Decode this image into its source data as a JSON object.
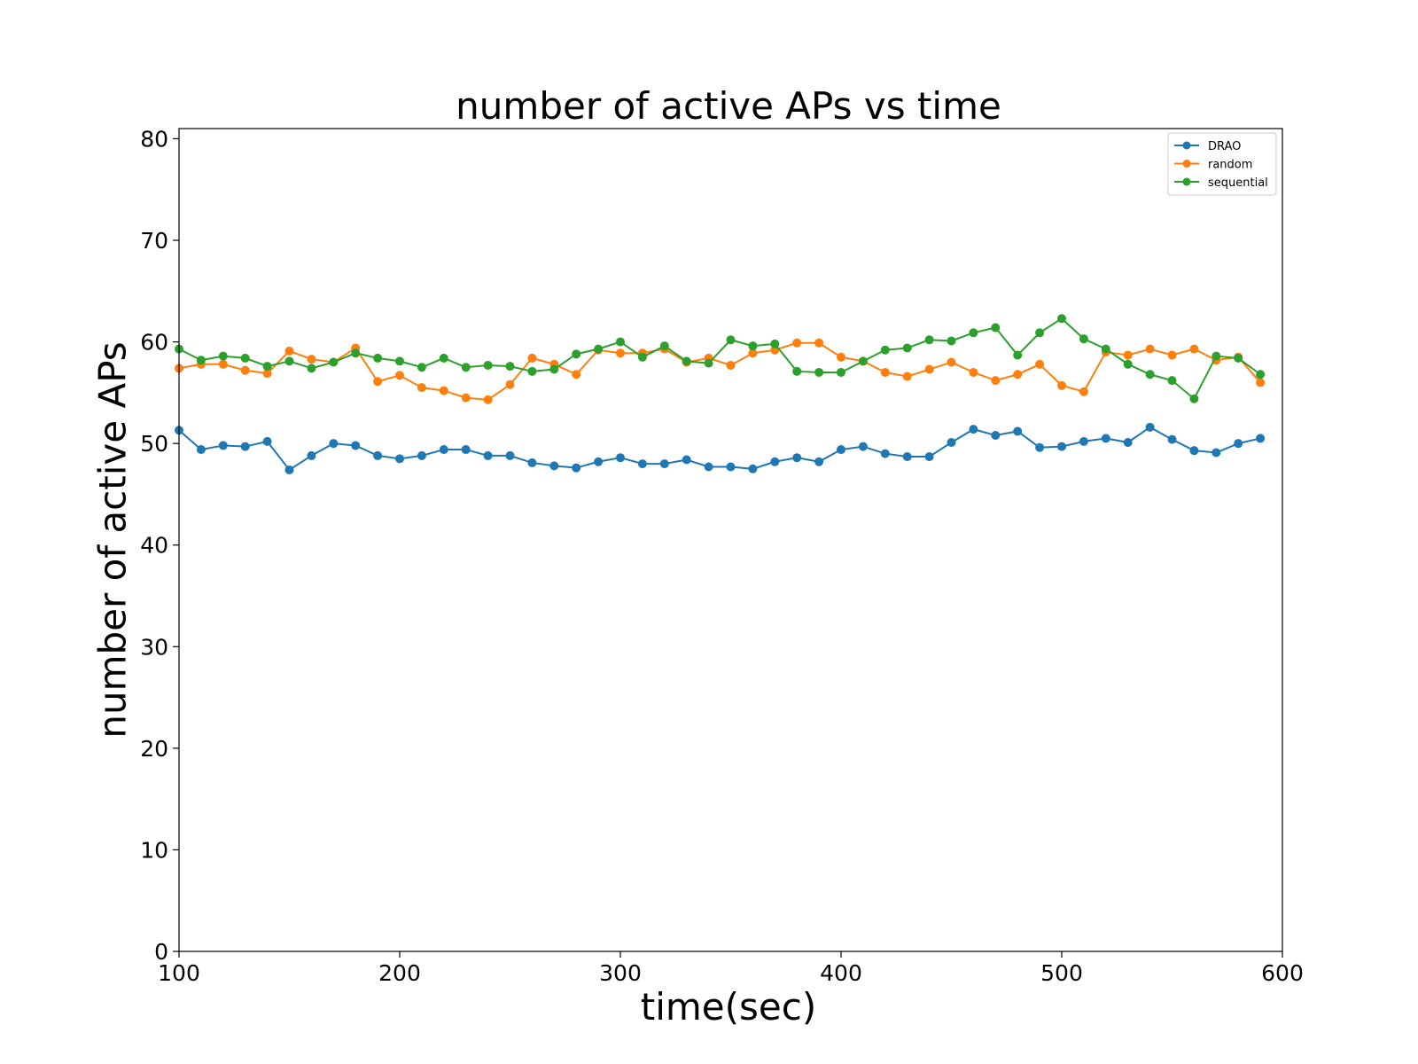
{
  "chart_data": {
    "type": "line",
    "title": "number of active APs vs time",
    "xlabel": "time(sec)",
    "ylabel": "number of active APs",
    "xlim": [
      100,
      600
    ],
    "ylim": [
      0,
      81
    ],
    "xticks": [
      100,
      200,
      300,
      400,
      500,
      600
    ],
    "yticks": [
      0,
      10,
      20,
      30,
      40,
      50,
      60,
      70,
      80
    ],
    "grid": false,
    "legend_position": "top-right",
    "x": [
      100,
      110,
      120,
      130,
      140,
      150,
      160,
      170,
      180,
      190,
      200,
      210,
      220,
      230,
      240,
      250,
      260,
      270,
      280,
      290,
      300,
      310,
      320,
      330,
      340,
      350,
      360,
      370,
      380,
      390,
      400,
      410,
      420,
      430,
      440,
      450,
      460,
      470,
      480,
      490,
      500,
      510,
      520,
      530,
      540,
      550,
      560,
      570,
      580,
      590
    ],
    "series": [
      {
        "name": "DRAO",
        "color": "#1f77b4",
        "values": [
          51.3,
          49.4,
          49.8,
          49.7,
          50.2,
          47.4,
          48.8,
          50.0,
          49.8,
          48.8,
          48.5,
          48.8,
          49.4,
          49.4,
          48.8,
          48.8,
          48.1,
          47.8,
          47.6,
          48.2,
          48.6,
          48.0,
          48.0,
          48.4,
          47.7,
          47.7,
          47.5,
          48.2,
          48.6,
          48.2,
          49.4,
          49.7,
          49.0,
          48.7,
          48.7,
          50.1,
          51.4,
          50.8,
          51.2,
          49.6,
          49.7,
          50.2,
          50.5,
          50.1,
          51.6,
          50.4,
          49.3,
          49.1,
          50.0,
          50.5
        ]
      },
      {
        "name": "random",
        "color": "#ff7f0e",
        "values": [
          57.4,
          57.8,
          57.8,
          57.2,
          56.9,
          59.1,
          58.3,
          58.0,
          59.4,
          56.1,
          56.7,
          55.5,
          55.2,
          54.5,
          54.3,
          55.8,
          58.4,
          57.8,
          56.8,
          59.2,
          58.9,
          58.9,
          59.3,
          58.0,
          58.4,
          57.7,
          58.9,
          59.2,
          59.9,
          59.9,
          58.5,
          58.1,
          57.0,
          56.6,
          57.3,
          58.0,
          57.0,
          56.2,
          56.8,
          57.8,
          55.7,
          55.1,
          59.0,
          58.7,
          59.3,
          58.7,
          59.3,
          58.2,
          58.5,
          56.0
        ]
      },
      {
        "name": "sequential",
        "color": "#2ca02c",
        "values": [
          59.3,
          58.2,
          58.6,
          58.4,
          57.6,
          58.1,
          57.4,
          58.0,
          58.9,
          58.4,
          58.1,
          57.5,
          58.4,
          57.5,
          57.7,
          57.6,
          57.1,
          57.3,
          58.8,
          59.3,
          60.0,
          58.5,
          59.6,
          58.1,
          57.9,
          60.2,
          59.6,
          59.8,
          57.1,
          57.0,
          57.0,
          58.1,
          59.2,
          59.4,
          60.2,
          60.1,
          60.9,
          61.4,
          58.7,
          60.9,
          62.3,
          60.3,
          59.3,
          57.8,
          56.8,
          56.2,
          54.4,
          58.6,
          58.4,
          56.8
        ]
      }
    ]
  }
}
